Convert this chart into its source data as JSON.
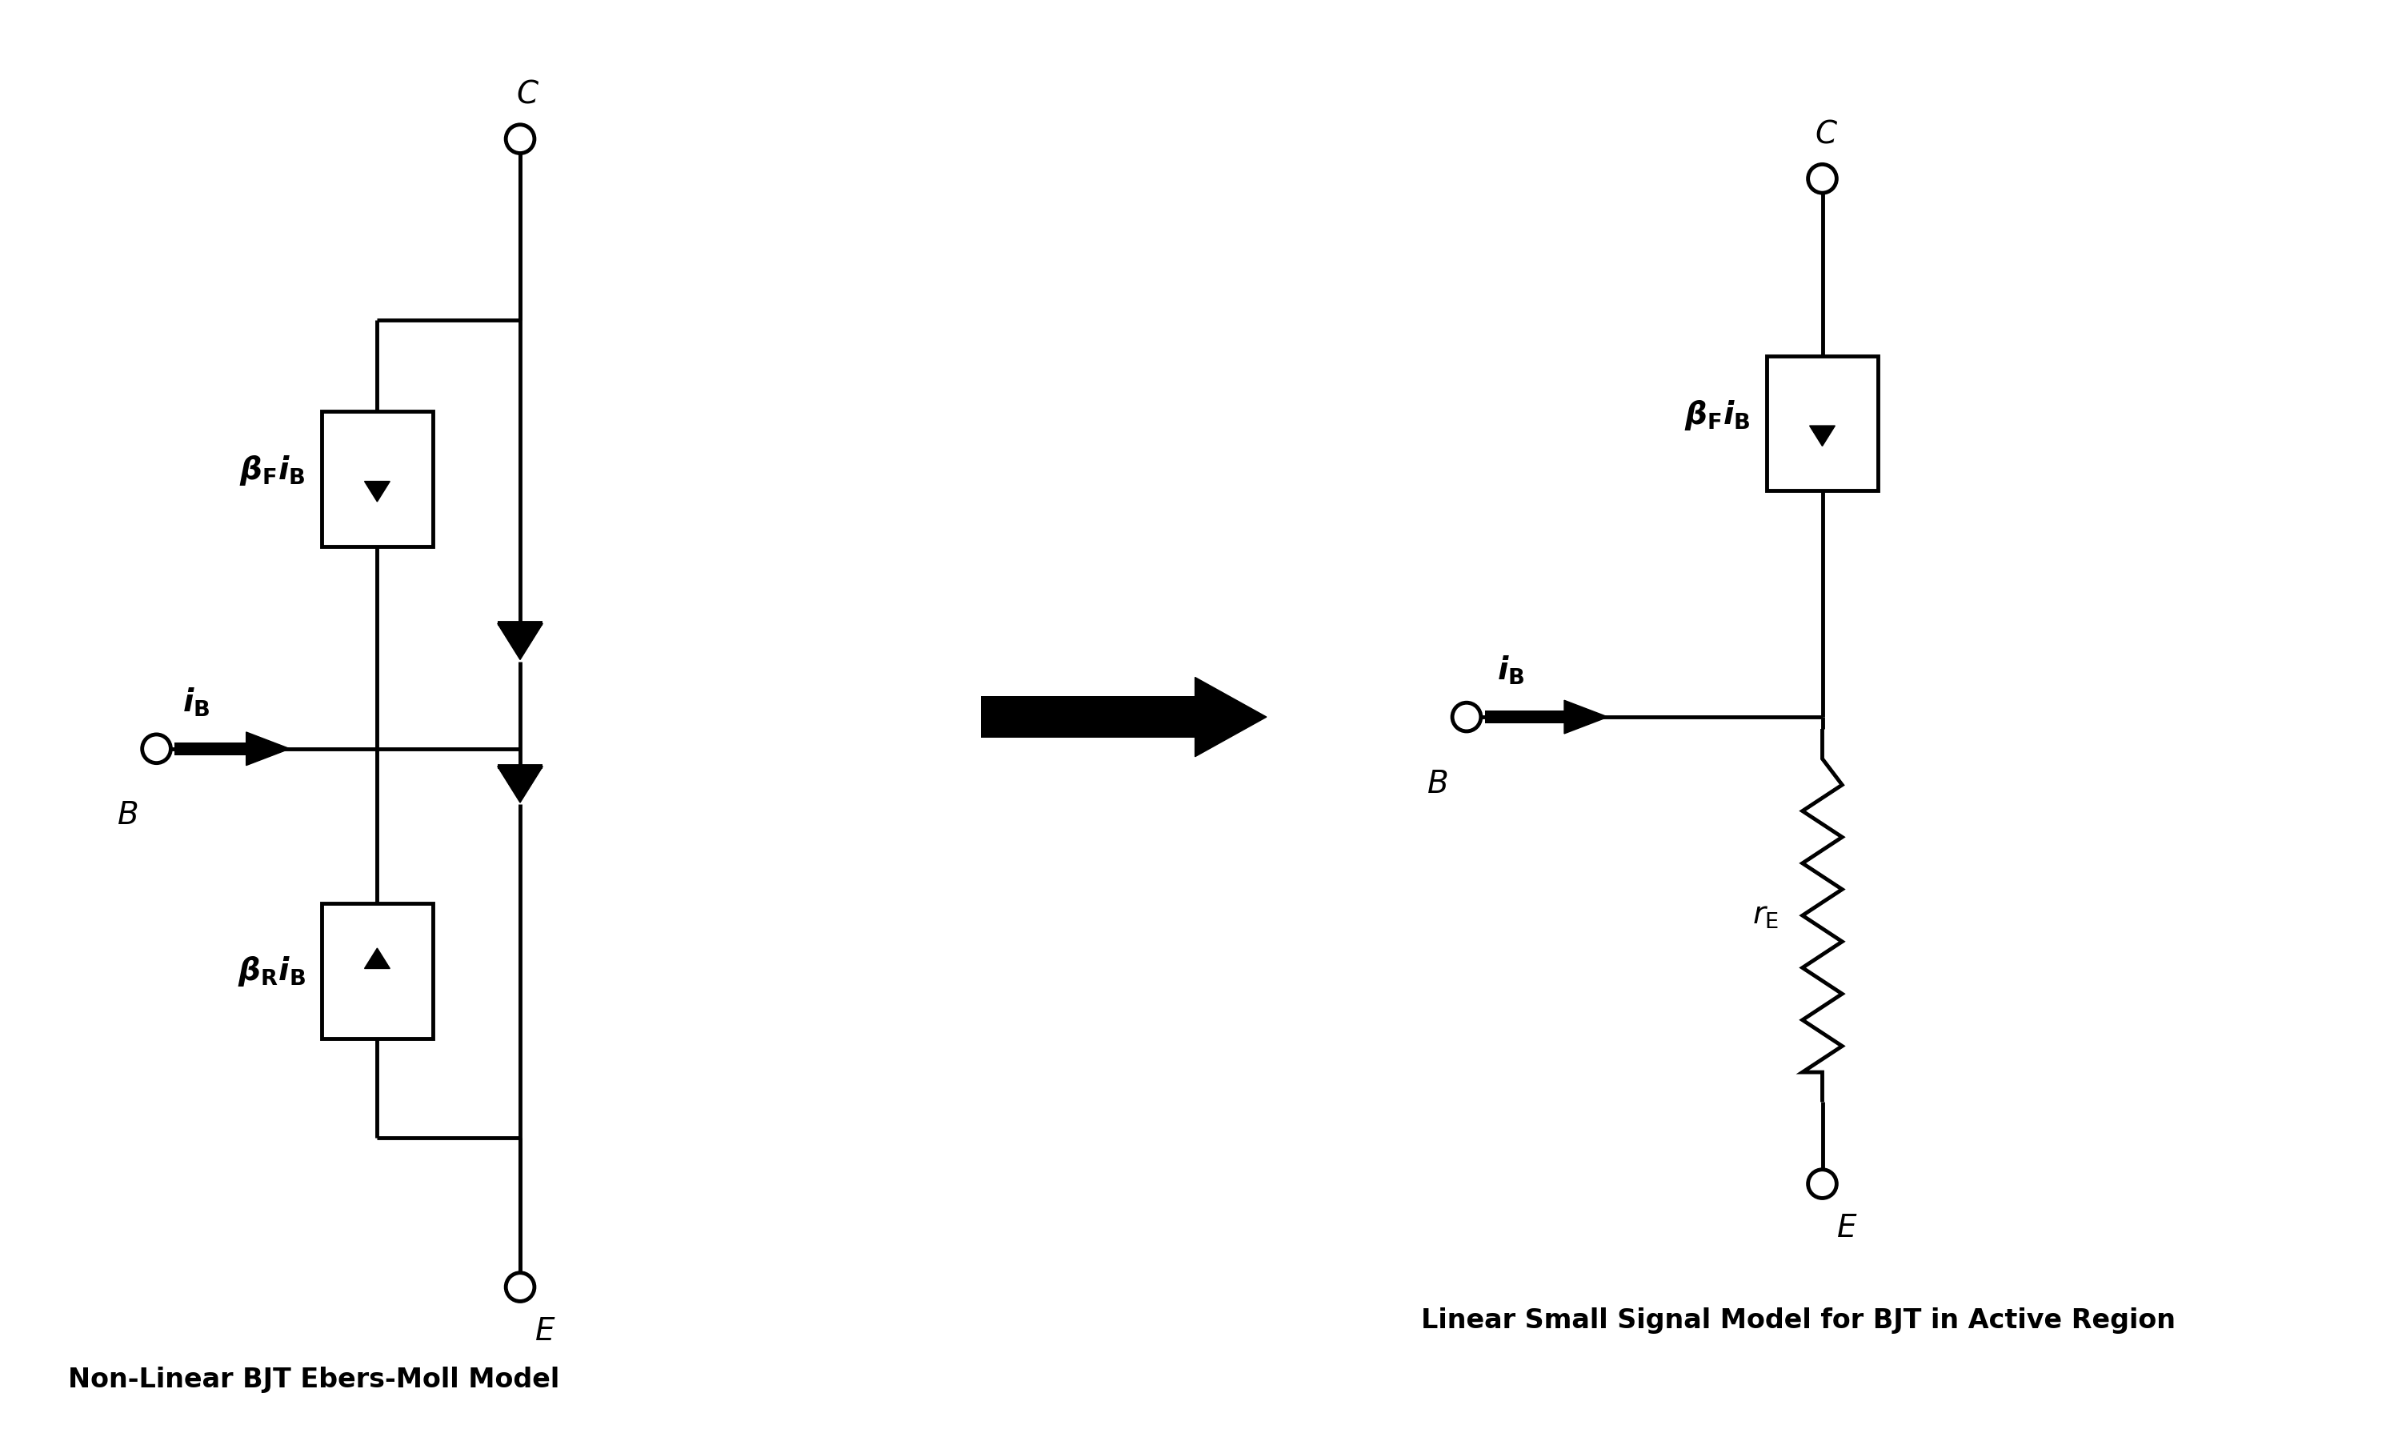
{
  "bg_color": "#ffffff",
  "line_color": "#000000",
  "line_width": 3.5,
  "title1": "Non-Linear BJT Ebers-Moll Model",
  "title2": "Linear Small Signal Model for BJT in Active Region",
  "title_fontsize": 24,
  "label_fontsize": 28
}
